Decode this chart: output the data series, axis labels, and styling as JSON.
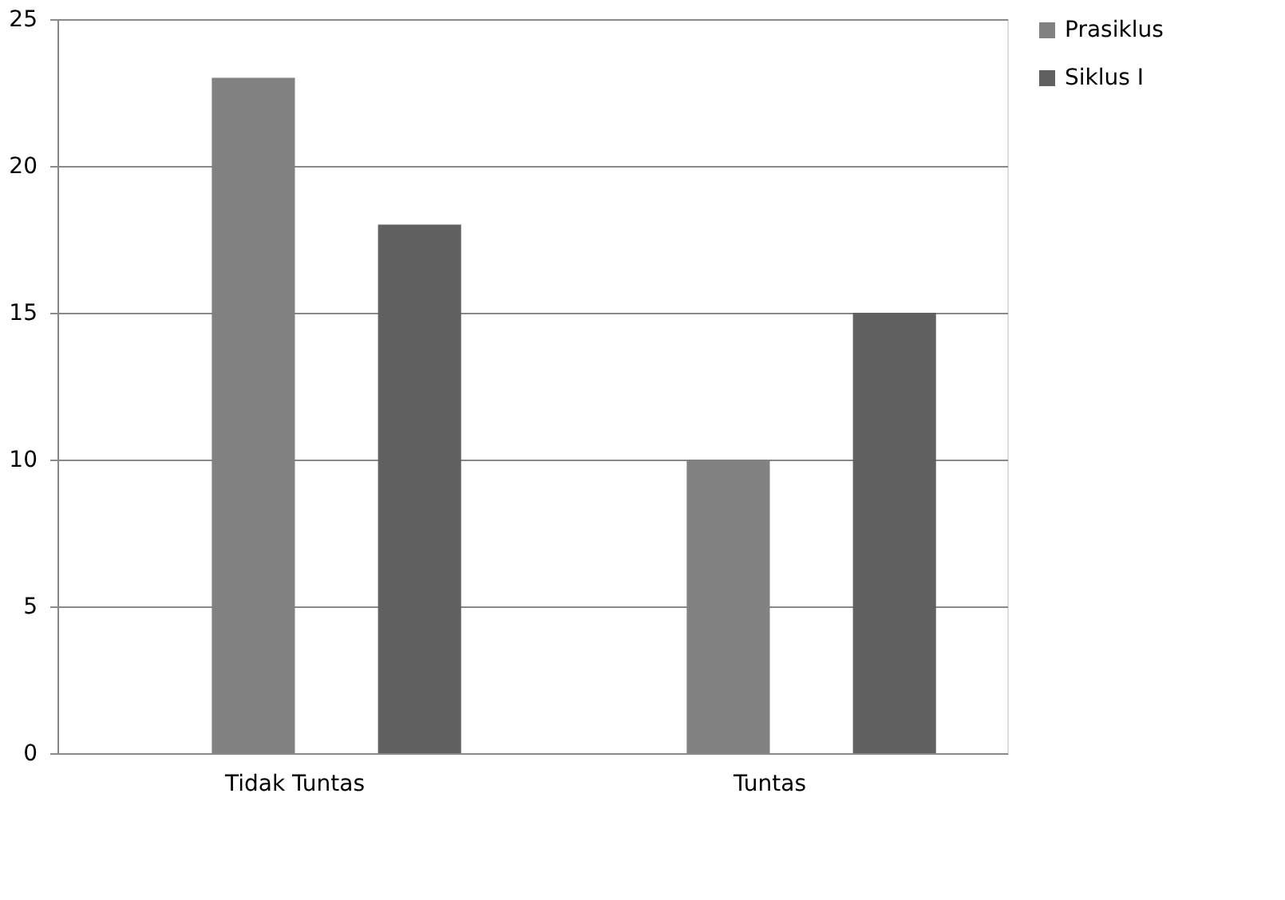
{
  "chart_data": {
    "type": "bar",
    "categories": [
      "Tidak Tuntas",
      "Tuntas"
    ],
    "series": [
      {
        "name": "Prasiklus",
        "color": "#828282",
        "values": [
          23,
          10
        ]
      },
      {
        "name": "Siklus I",
        "color": "#616161",
        "values": [
          18,
          15
        ]
      }
    ],
    "ylim": [
      0,
      25
    ],
    "yticks": [
      0,
      5,
      10,
      15,
      20,
      25
    ],
    "grid": "y",
    "legend": "right"
  }
}
